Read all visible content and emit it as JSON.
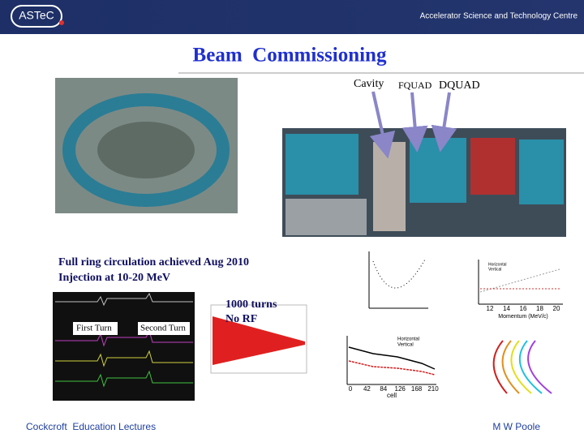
{
  "header": {
    "logo": "ASTeC",
    "organisation": "Accelerator Science and Technology Centre"
  },
  "title": "Beam  Commissioning",
  "photo_labels": [
    "Cavity",
    "FQUAD",
    "DQUAD"
  ],
  "notes": [
    "Full ring circulation achieved Aug 2010",
    "Injection at 10-20 MeV"
  ],
  "scope_labels": [
    "First Turn",
    "Second Turn"
  ],
  "decay_note": [
    "1000 turns",
    "No RF"
  ],
  "plots": {
    "position": {
      "legend": [
        "Horizontal",
        "Vertical"
      ],
      "xticks": [
        "12",
        "14",
        "16",
        "18",
        "20"
      ],
      "xlabel": "Momentum (MeV/c)"
    },
    "tune": {
      "legend": [
        "Horizontal",
        "Vertical"
      ],
      "xticks": [
        "0",
        "42",
        "84",
        "126",
        "168",
        "210"
      ],
      "xlabel": "cell"
    }
  },
  "footer": {
    "left": "Cockcroft  Education Lectures",
    "right": "M W Poole"
  }
}
